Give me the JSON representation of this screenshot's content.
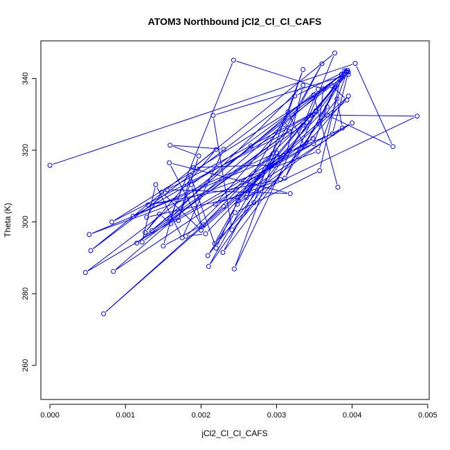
{
  "chart_data": {
    "type": "line",
    "title": "ATOM3 Northbound jCl2_Cl_Cl_CAFS",
    "xlabel": "jCl2_Cl_Cl_CAFS",
    "ylabel": "Theta (K)",
    "xlim": [
      -0.00012,
      0.00502
    ],
    "ylim": [
      250.5,
      350.5
    ],
    "xticks": [
      "0.000",
      "0.001",
      "0.002",
      "0.003",
      "0.004",
      "0.005"
    ],
    "yticks": [
      "260",
      "280",
      "300",
      "320",
      "340"
    ],
    "colors": {
      "series": "#0000ff",
      "axes": "#000000",
      "background": "#ffffff"
    },
    "series": [
      {
        "marker": "open-circle",
        "x": [
          0.0,
          0.00404,
          0.00454,
          0.00367,
          0.00486,
          0.0026,
          0.00274,
          0.00305,
          0.002,
          0.00148,
          0.00128,
          0.00248,
          0.004,
          0.00294,
          0.0019,
          0.0022,
          0.00126,
          0.00145,
          0.0016,
          0.00349,
          0.00367,
          0.00206,
          0.0018,
          0.00352,
          0.00377,
          0.00356,
          0.00362,
          0.00243,
          0.00159,
          0.00335,
          0.00312,
          0.00295,
          0.00203,
          0.0015,
          0.00168,
          0.0013,
          0.00305,
          0.00219,
          0.0031,
          0.00335,
          0.0027,
          0.00218,
          0.00315,
          0.00337,
          0.0039,
          0.0021,
          0.0036,
          0.00229,
          0.0038,
          0.00387,
          0.00248,
          0.00393,
          0.00249,
          0.0022,
          0.00186,
          0.0017,
          0.00197,
          0.00159,
          0.0023,
          0.00175,
          0.0014,
          0.00122,
          0.00345,
          0.0011,
          0.003,
          0.00244,
          0.00335,
          0.00355,
          0.00115,
          0.0034,
          0.00377,
          0.00054,
          0.00324,
          0.00394,
          0.00355,
          0.00052,
          0.00374,
          0.00395,
          0.00209,
          0.00245,
          0.00357,
          0.00386,
          0.00084,
          0.00348,
          0.00047,
          0.00373,
          0.00393,
          0.00071,
          0.0023,
          0.00395,
          0.00241,
          0.00216,
          0.00395,
          0.00082,
          0.00317,
          0.00135,
          0.00266,
          0.00392,
          0.00187,
          0.00201,
          0.00158,
          0.00318,
          0.00155,
          0.00352,
          0.00311,
          0.00392,
          0.00349,
          0.00381
        ],
        "y": [
          315.8,
          344.2,
          321.0,
          329.8,
          329.5,
          306.8,
          312.3,
          317.2,
          297.7,
          308.3,
          301.3,
          306.9,
          327.6,
          315.9,
          315.2,
          320.2,
          297.1,
          302.2,
          299.5,
          321.8,
          332.1,
          296.7,
          296.0,
          331.0,
          337.5,
          327.3,
          337.1,
          345.1,
          301.0,
          338.1,
          318.1,
          319.0,
          299.2,
          293.3,
          306.1,
          304.8,
          311.8,
          305.0,
          327.2,
          342.5,
          305.4,
          294.0,
          330.7,
          321.2,
          342.2,
          287.6,
          344.1,
          291.5,
          334.3,
          326.2,
          304.9,
          341.8,
          306.0,
          292.7,
          313.0,
          300.4,
          318.4,
          321.4,
          320.3,
          295.6,
          310.4,
          294.4,
          329.8,
          301.6,
          319.3,
          286.9,
          327.0,
          337.0,
          294.1,
          327.8,
          347.1,
          292.0,
          335.1,
          342.3,
          319.7,
          296.5,
          324.6,
          341.8,
          290.6,
          302.6,
          314.3,
          341.2,
          286.2,
          323.3,
          285.9,
          338.0,
          334.0,
          274.4,
          304.3,
          335.1,
          297.8,
          329.7,
          341.1,
          300.0,
          325.3,
          297.6,
          321.2,
          342.0,
          310.4,
          298.7,
          316.5,
          307.9,
          309.0,
          330.8,
          312.2,
          341.8,
          335.4,
          309.7
        ]
      }
    ]
  }
}
